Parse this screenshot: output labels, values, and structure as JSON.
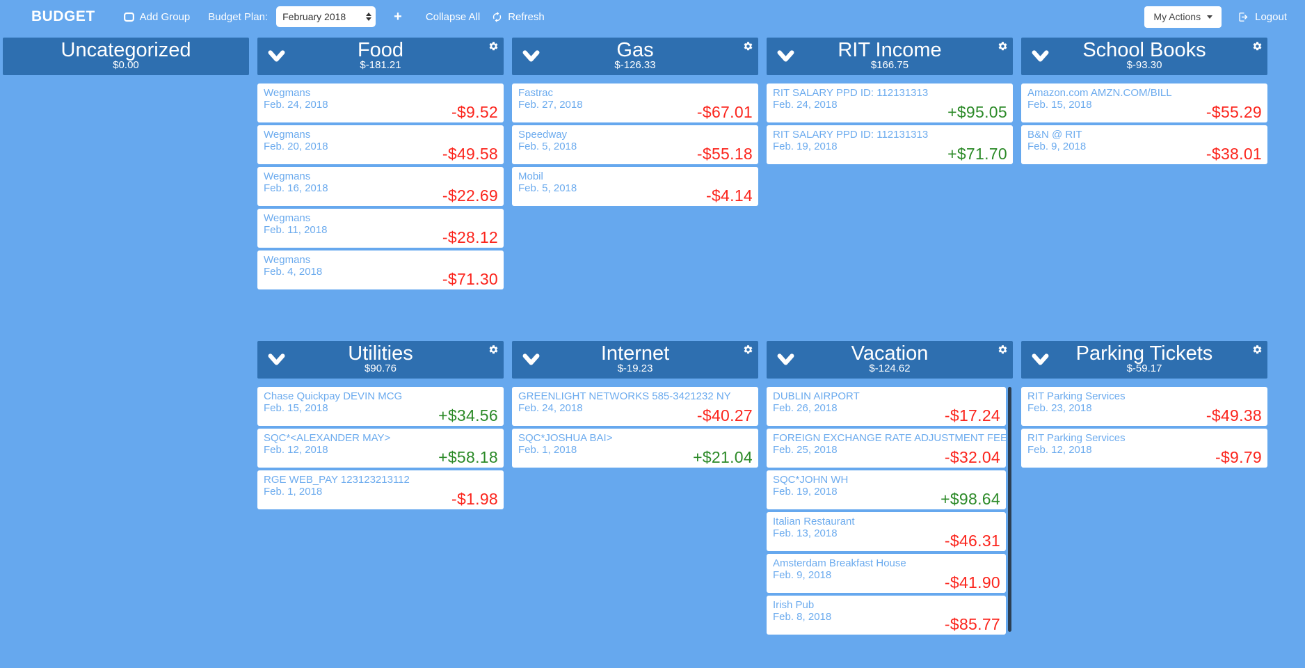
{
  "navbar": {
    "brand": "BUDGET",
    "add_group_label": "Add Group",
    "budget_plan_label": "Budget Plan:",
    "budget_plan_value": "February 2018",
    "plus_label": "+",
    "collapse_all_label": "Collapse All",
    "refresh_label": "Refresh",
    "my_actions_label": "My Actions",
    "logout_label": "Logout"
  },
  "colors": {
    "background": "#66a8ee",
    "group_header": "#2e6fb0",
    "card_text_blue": "#6cabee",
    "amount_negative": "#fb251d",
    "amount_positive": "#2c8a28",
    "scrollbar_thumb": "#2b3f54"
  },
  "groups": [
    {
      "name": "Uncategorized",
      "total": "$0.00",
      "row": 1,
      "has_controls": false,
      "has_scrollbar": false,
      "transactions": []
    },
    {
      "name": "Food",
      "total": "$-181.21",
      "row": 1,
      "has_controls": true,
      "has_scrollbar": false,
      "transactions": [
        {
          "merchant": "Wegmans",
          "date": "Feb. 24, 2018",
          "amount": "-$9.52"
        },
        {
          "merchant": "Wegmans",
          "date": "Feb. 20, 2018",
          "amount": "-$49.58"
        },
        {
          "merchant": "Wegmans",
          "date": "Feb. 16, 2018",
          "amount": "-$22.69"
        },
        {
          "merchant": "Wegmans",
          "date": "Feb. 11, 2018",
          "amount": "-$28.12"
        },
        {
          "merchant": "Wegmans",
          "date": "Feb. 4, 2018",
          "amount": "-$71.30"
        }
      ]
    },
    {
      "name": "Gas",
      "total": "$-126.33",
      "row": 1,
      "has_controls": true,
      "has_scrollbar": false,
      "transactions": [
        {
          "merchant": "Fastrac",
          "date": "Feb. 27, 2018",
          "amount": "-$67.01"
        },
        {
          "merchant": "Speedway",
          "date": "Feb. 5, 2018",
          "amount": "-$55.18"
        },
        {
          "merchant": "Mobil",
          "date": "Feb. 5, 2018",
          "amount": "-$4.14"
        }
      ]
    },
    {
      "name": "RIT Income",
      "total": "$166.75",
      "row": 1,
      "has_controls": true,
      "has_scrollbar": false,
      "transactions": [
        {
          "merchant": "RIT SALARY PPD ID: 112131313",
          "date": "Feb. 24, 2018",
          "amount": "+$95.05"
        },
        {
          "merchant": "RIT SALARY PPD ID: 112131313",
          "date": "Feb. 19, 2018",
          "amount": "+$71.70"
        }
      ]
    },
    {
      "name": "School Books",
      "total": "$-93.30",
      "row": 1,
      "has_controls": true,
      "has_scrollbar": false,
      "transactions": [
        {
          "merchant": "Amazon.com AMZN.COM/BILL",
          "date": "Feb. 15, 2018",
          "amount": "-$55.29"
        },
        {
          "merchant": "B&N @ RIT",
          "date": "Feb. 9, 2018",
          "amount": "-$38.01"
        }
      ]
    },
    {
      "name": "Utilities",
      "total": "$90.76",
      "row": 2,
      "has_controls": true,
      "has_scrollbar": false,
      "transactions": [
        {
          "merchant": "Chase Quickpay DEVIN MCG",
          "date": "Feb. 15, 2018",
          "amount": "+$34.56"
        },
        {
          "merchant": "SQC*<ALEXANDER MAY>",
          "date": "Feb. 12, 2018",
          "amount": "+$58.18"
        },
        {
          "merchant": "RGE WEB_PAY 123123213112",
          "date": "Feb. 1, 2018",
          "amount": "-$1.98"
        }
      ]
    },
    {
      "name": "Internet",
      "total": "$-19.23",
      "row": 2,
      "has_controls": true,
      "has_scrollbar": false,
      "transactions": [
        {
          "merchant": "GREENLIGHT NETWORKS 585-3421232 NY",
          "date": "Feb. 24, 2018",
          "amount": "-$40.27"
        },
        {
          "merchant": "SQC*JOSHUA BAI>",
          "date": "Feb. 1, 2018",
          "amount": "+$21.04"
        }
      ]
    },
    {
      "name": "Vacation",
      "total": "$-124.62",
      "row": 2,
      "has_controls": true,
      "has_scrollbar": true,
      "transactions": [
        {
          "merchant": "DUBLIN AIRPORT",
          "date": "Feb. 26, 2018",
          "amount": "-$17.24"
        },
        {
          "merchant": "FOREIGN EXCHANGE RATE ADJUSTMENT FEE",
          "date": "Feb. 25, 2018",
          "amount": "-$32.04"
        },
        {
          "merchant": "SQC*JOHN WH",
          "date": "Feb. 19, 2018",
          "amount": "+$98.64"
        },
        {
          "merchant": "Italian Restaurant",
          "date": "Feb. 13, 2018",
          "amount": "-$46.31"
        },
        {
          "merchant": "Amsterdam Breakfast House",
          "date": "Feb. 9, 2018",
          "amount": "-$41.90"
        },
        {
          "merchant": "Irish Pub",
          "date": "Feb. 8, 2018",
          "amount": "-$85.77"
        }
      ]
    },
    {
      "name": "Parking Tickets",
      "total": "$-59.17",
      "row": 2,
      "has_controls": true,
      "has_scrollbar": false,
      "transactions": [
        {
          "merchant": "RIT Parking Services",
          "date": "Feb. 23, 2018",
          "amount": "-$49.38"
        },
        {
          "merchant": "RIT Parking Services",
          "date": "Feb. 12, 2018",
          "amount": "-$9.79"
        }
      ]
    }
  ]
}
